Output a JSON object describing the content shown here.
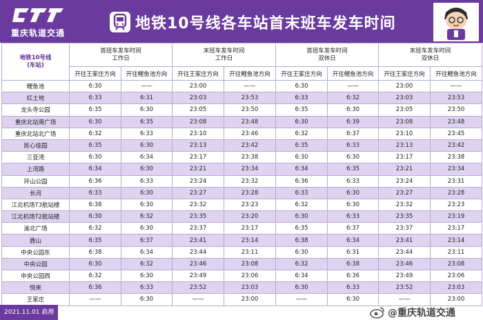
{
  "brand": {
    "name": "重庆轨道交通"
  },
  "header": {
    "title": "地铁10号线各车站首末班车发车时间"
  },
  "table": {
    "station_head_line1": "地铁10号线",
    "station_head_line2": "(车站)",
    "groups": [
      {
        "line1": "首班车发车时间",
        "line2": "工作日"
      },
      {
        "line1": "末班车发车时间",
        "line2": "工作日"
      },
      {
        "line1": "首班车发车时间",
        "line2": "双休日"
      },
      {
        "line1": "末班车发车时间",
        "line2": "双休日"
      }
    ],
    "directions": [
      "开往王家庄方向",
      "开往鲤鱼池方向"
    ],
    "rows": [
      {
        "station": "鲤鱼池",
        "times": [
          "6:30",
          "——",
          "23:00",
          "——",
          "6:30",
          "——",
          "23:00",
          "——"
        ]
      },
      {
        "station": "红土地",
        "times": [
          "6:33",
          "6:31",
          "23:03",
          "23:53",
          "6:33",
          "6:32",
          "23:03",
          "23:53"
        ]
      },
      {
        "station": "龙头寺公园",
        "times": [
          "6:35",
          "6:30",
          "23:05",
          "23:50",
          "6:35",
          "6:30",
          "23:05",
          "23:50"
        ]
      },
      {
        "station": "重庆北站南广场",
        "times": [
          "6:30",
          "6:35",
          "23:08",
          "23:48",
          "6:30",
          "6:39",
          "23:08",
          "23:48"
        ]
      },
      {
        "station": "重庆北站北广场",
        "times": [
          "6:32",
          "6:33",
          "23:10",
          "23:46",
          "6:32",
          "6:37",
          "23:10",
          "23:45"
        ]
      },
      {
        "station": "民心佳园",
        "times": [
          "6:35",
          "6:30",
          "23:13",
          "23:42",
          "6:35",
          "6:33",
          "23:13",
          "23:42"
        ]
      },
      {
        "station": "三亚湾",
        "times": [
          "6:30",
          "6:34",
          "23:17",
          "23:38",
          "6:30",
          "6:30",
          "23:17",
          "23:38"
        ]
      },
      {
        "station": "上湾路",
        "times": [
          "6:34",
          "6:30",
          "23:21",
          "23:34",
          "6:34",
          "6:35",
          "23:21",
          "23:34"
        ]
      },
      {
        "station": "环山公园",
        "times": [
          "6:36",
          "6:33",
          "23:24",
          "23:32",
          "6:36",
          "6:33",
          "23:24",
          "23:31"
        ]
      },
      {
        "station": "长河",
        "times": [
          "6:33",
          "6:30",
          "23:27",
          "23:28",
          "6:33",
          "6:30",
          "23:27",
          "23:28"
        ]
      },
      {
        "station": "江北机场T3航站楼",
        "times": [
          "6:38",
          "6:30",
          "23:32",
          "23:23",
          "6:32",
          "6:30",
          "23:32",
          "23:23"
        ]
      },
      {
        "station": "江北机场T2航站楼",
        "times": [
          "6:30",
          "6:32",
          "23:35",
          "23:20",
          "6:30",
          "6:33",
          "23:35",
          "23:19"
        ]
      },
      {
        "station": "渝北广场",
        "times": [
          "6:32",
          "6:30",
          "23:37",
          "23:17",
          "6:35",
          "6:37",
          "23:37",
          "23:17"
        ]
      },
      {
        "station": "鹿山",
        "times": [
          "6:35",
          "6:37",
          "23:41",
          "23:14",
          "6:38",
          "6:34",
          "23:41",
          "23:14"
        ]
      },
      {
        "station": "中央公园东",
        "times": [
          "6:38",
          "6:34",
          "23:44",
          "23:11",
          "6:30",
          "6:31",
          "23:44",
          "23:11"
        ]
      },
      {
        "station": "中央公园",
        "times": [
          "6:30",
          "6:32",
          "23:46",
          "23:08",
          "6:32",
          "6:38",
          "23:46",
          "23:08"
        ]
      },
      {
        "station": "中央公园西",
        "times": [
          "6:32",
          "6:30",
          "23:49",
          "23:06",
          "6:34",
          "6:36",
          "23:49",
          "23:06"
        ]
      },
      {
        "station": "悦来",
        "times": [
          "6:36",
          "6:33",
          "23:52",
          "23:03",
          "6:30",
          "6:33",
          "23:52",
          "23:03"
        ]
      },
      {
        "station": "王家庄",
        "times": [
          "——",
          "6:30",
          "——",
          "23:00",
          "——",
          "6:30",
          "——",
          "23:00"
        ]
      }
    ]
  },
  "footer": {
    "date_note": "2021.11.01 启用",
    "weibo_handle": "@重庆轨道交通"
  },
  "colors": {
    "brand_purple": "#6a3a9e",
    "row_alt": "#ded3f0",
    "grid_line": "#b9a9d2"
  }
}
